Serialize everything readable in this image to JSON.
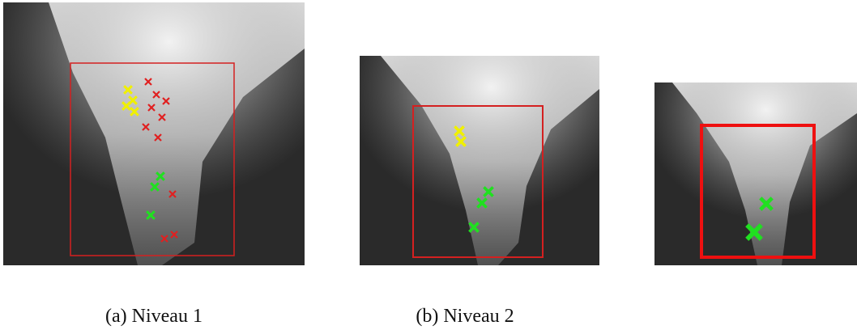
{
  "captions": [
    "(a) Niveau 1",
    "(b) Niveau 2"
  ]
}
